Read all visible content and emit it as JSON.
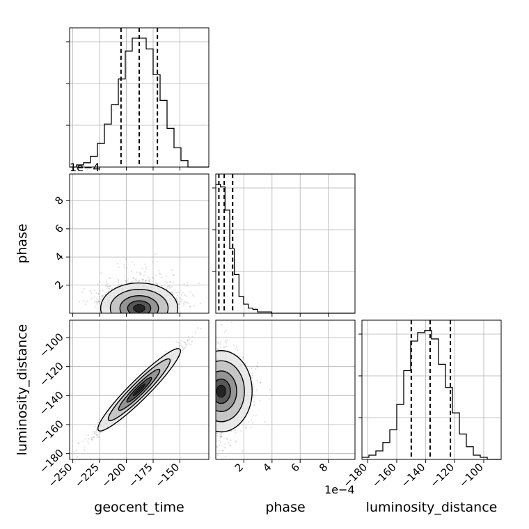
{
  "chart_data": {
    "type": "corner",
    "parameters": [
      "geocent_time",
      "phase",
      "luminosity_distance"
    ],
    "xlabels": [
      "geocent_time",
      "phase",
      "luminosity_distance"
    ],
    "ylabels": {
      "phase": "phase",
      "luminosity_distance": "luminosity_distance"
    },
    "ranges": {
      "geocent_time": [
        -253,
        -123
      ],
      "phase": [
        0.0,
        9.9
      ],
      "luminosity_distance": [
        -184,
        -88
      ]
    },
    "tick_labels": {
      "geocent_time": [
        "−250",
        "−225",
        "−200",
        "−175",
        "−150"
      ],
      "phase": [
        "2",
        "4",
        "6",
        "8"
      ],
      "luminosity_distance": [
        "−180",
        "−160",
        "−140",
        "−120",
        "−100"
      ]
    },
    "tick_values": {
      "geocent_time": [
        -250,
        -225,
        -200,
        -175,
        -150
      ],
      "phase": [
        2,
        4,
        6,
        8
      ],
      "luminosity_distance": [
        -180,
        -160,
        -140,
        -120,
        -100
      ]
    },
    "offset_label": "1e−4",
    "quantiles": {
      "geocent_time": [
        -205,
        -188,
        -171
      ],
      "phase": [
        0.22,
        0.6,
        1.2
      ],
      "luminosity_distance": [
        -150,
        -137,
        -123
      ]
    },
    "histograms": {
      "geocent_time": {
        "edges": [
          -253,
          -246.5,
          -240,
          -233.5,
          -227,
          -220.5,
          -214,
          -207.5,
          -201,
          -194.5,
          -188,
          -181.5,
          -175,
          -168.5,
          -162,
          -155.5,
          -149,
          -142.5,
          -136,
          -129.5,
          -123
        ],
        "counts": [
          0,
          1,
          2,
          5,
          11,
          20,
          29,
          41,
          54,
          60,
          60,
          55,
          43,
          31,
          18,
          9,
          3,
          0,
          0,
          0
        ]
      },
      "phase": {
        "edges": [
          0.0,
          0.33,
          0.66,
          0.99,
          1.32,
          1.65,
          1.98,
          2.31,
          2.64,
          2.97,
          3.3,
          3.63,
          3.96,
          4.29,
          4.62,
          4.95,
          5.28,
          5.61,
          5.94,
          6.27,
          6.6,
          6.93,
          7.26,
          7.59,
          7.92,
          8.25,
          8.58,
          8.91,
          9.24,
          9.57,
          9.9
        ],
        "counts": [
          100,
          98,
          80,
          50,
          30,
          13,
          7,
          4,
          3,
          1,
          1,
          1,
          0,
          0,
          0,
          0,
          0,
          0,
          0,
          0,
          0,
          0,
          0,
          0,
          0,
          0,
          0,
          0,
          0,
          0
        ]
      },
      "luminosity_distance": {
        "edges": [
          -184,
          -179.2,
          -174.4,
          -169.6,
          -164.8,
          -160,
          -155.2,
          -150.4,
          -145.6,
          -140.8,
          -136,
          -131.2,
          -126.4,
          -121.6,
          -116.8,
          -112,
          -107.2,
          -102.4,
          -97.6,
          -92.8,
          -88
        ],
        "counts": [
          1,
          2,
          4,
          8,
          14,
          26,
          42,
          56,
          60,
          61,
          57,
          45,
          34,
          22,
          12,
          6,
          2,
          1,
          0,
          0
        ]
      }
    },
    "scatter_pairs": [
      {
        "x": "geocent_time",
        "y": "phase",
        "center": [
          -188,
          0.45
        ],
        "spread": [
          18,
          0.9
        ],
        "correlation": -0.15
      },
      {
        "x": "geocent_time",
        "y": "luminosity_distance",
        "center": [
          -188,
          -136
        ],
        "spread": [
          19,
          14
        ],
        "correlation": 0.98
      },
      {
        "x": "phase",
        "y": "luminosity_distance",
        "center": [
          0.5,
          -137
        ],
        "spread": [
          1.0,
          14
        ],
        "correlation": 0.0
      }
    ],
    "line_color": "#000000",
    "grid": true
  }
}
